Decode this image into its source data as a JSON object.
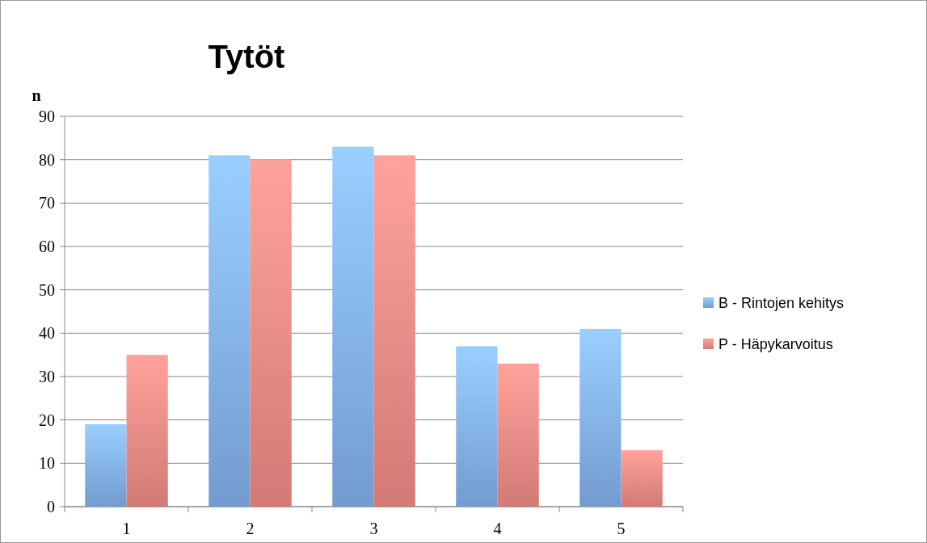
{
  "chart_data": {
    "type": "bar",
    "title": "Tytöt",
    "ylabel": "n",
    "categories": [
      "1",
      "2",
      "3",
      "4",
      "5"
    ],
    "series": [
      {
        "name": "B - Rintojen kehitys",
        "color": "#82b0ea",
        "values": [
          19,
          81,
          83,
          37,
          41
        ]
      },
      {
        "name": "P - Häpykarvoitus",
        "color": "#ee8a84",
        "values": [
          35,
          80,
          81,
          33,
          13
        ]
      }
    ],
    "ylim": [
      0,
      90
    ],
    "yticks": [
      0,
      10,
      20,
      30,
      40,
      50,
      60,
      70,
      80,
      90
    ],
    "grid": "y",
    "legend": "right"
  }
}
